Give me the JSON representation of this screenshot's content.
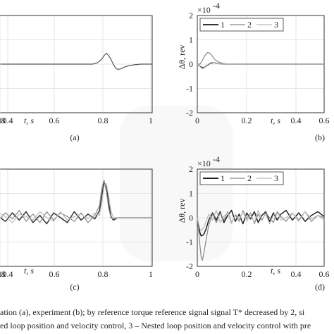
{
  "chart_data": [
    {
      "panel": "(a)",
      "type": "line",
      "x_tick_labels": [
        "0.4",
        "0.6",
        "0.8",
        "1"
      ],
      "xlabel": "t, s",
      "xlim": [
        0.33,
        1.0
      ],
      "ylim": [
        -2,
        2
      ],
      "series": [
        {
          "color": "#555555",
          "x": [
            0.33,
            0.45,
            0.6,
            0.74,
            0.76,
            0.78,
            0.79,
            0.8,
            0.81,
            0.82,
            0.83,
            0.84,
            0.85,
            0.86,
            0.88,
            0.9,
            0.92,
            0.95,
            1.0
          ],
          "y": [
            0,
            0,
            0,
            0,
            0.05,
            0.2,
            0.35,
            0.45,
            0.35,
            0.2,
            0.0,
            -0.15,
            -0.22,
            -0.2,
            -0.12,
            -0.06,
            -0.03,
            0,
            0
          ]
        }
      ]
    },
    {
      "panel": "(b)",
      "type": "line",
      "y_multiplier": "×10",
      "y_multiplier_exp": "-4",
      "ylabel": "Δθ, rev",
      "xlabel": "t, s",
      "y_tick_labels": [
        "2",
        "1",
        "0",
        "-1",
        "-2"
      ],
      "x_tick_labels": [
        "0",
        "0.2",
        "0.4",
        "0.6",
        "0.8",
        "1"
      ],
      "xlim": [
        0,
        1.0
      ],
      "ylim": [
        -2,
        2
      ],
      "legend": {
        "position": "top-left",
        "entries": [
          "1",
          "2",
          "3"
        ]
      },
      "series": [
        {
          "color": "#333333",
          "x": [
            0,
            0.01,
            0.03,
            0.05,
            0.08,
            0.11,
            0.14,
            0.17,
            0.2,
            0.25,
            0.3,
            0.5,
            0.7,
            1.0
          ],
          "y": [
            0,
            -0.05,
            -0.12,
            -0.15,
            -0.05,
            0.05,
            0.05,
            0.02,
            0,
            0,
            0,
            0,
            0,
            0
          ]
        },
        {
          "color": "#888888",
          "x": [
            0,
            0.02,
            0.04,
            0.06,
            0.08,
            0.1,
            0.12,
            0.14,
            0.17,
            0.2,
            0.25,
            0.3,
            0.5,
            0.7,
            1.0
          ],
          "y": [
            0,
            0.0,
            0.15,
            0.35,
            0.48,
            0.45,
            0.32,
            0.18,
            0.08,
            0.03,
            0,
            0,
            0,
            0,
            0
          ]
        },
        {
          "color": "#bbbbbb",
          "x": [
            0,
            0.02,
            0.04,
            0.07,
            0.1,
            0.13,
            0.16,
            0.2,
            0.3,
            0.5,
            0.7,
            1.0
          ],
          "y": [
            0,
            -0.1,
            -0.2,
            -0.1,
            0.0,
            0.05,
            0.02,
            0,
            0,
            0,
            0,
            0
          ]
        }
      ]
    },
    {
      "panel": "(c)",
      "type": "line",
      "x_tick_labels": [
        "0.4",
        "0.6",
        "0.8",
        "1"
      ],
      "xlabel": "t, s",
      "xlim": [
        0.33,
        1.0
      ],
      "ylim": [
        -2,
        2
      ],
      "series": [
        {
          "color": "#333333",
          "x": [
            0.33,
            0.36,
            0.39,
            0.42,
            0.45,
            0.48,
            0.51,
            0.54,
            0.57,
            0.6,
            0.63,
            0.66,
            0.69,
            0.72,
            0.75,
            0.77,
            0.78,
            0.79,
            0.8,
            0.81,
            0.82,
            0.83,
            0.85,
            0.88,
            0.92,
            0.96,
            1.0
          ],
          "y": [
            0.05,
            -0.15,
            0.2,
            -0.1,
            0.25,
            -0.2,
            0.1,
            -0.25,
            0.2,
            0.0,
            -0.2,
            0.25,
            -0.1,
            0.15,
            -0.05,
            0.3,
            0.9,
            1.45,
            1.3,
            0.6,
            0.05,
            -0.1,
            0,
            0,
            0,
            0,
            0
          ]
        },
        {
          "color": "#888888",
          "x": [
            0.33,
            0.36,
            0.39,
            0.42,
            0.45,
            0.48,
            0.51,
            0.54,
            0.57,
            0.6,
            0.63,
            0.66,
            0.69,
            0.72,
            0.75,
            0.77,
            0.78,
            0.79,
            0.8,
            0.81,
            0.82,
            0.83,
            0.85,
            0.88,
            0.92,
            0.96,
            1.0
          ],
          "y": [
            -0.1,
            0.2,
            -0.05,
            0.3,
            -0.15,
            0.15,
            -0.2,
            0.25,
            -0.1,
            0.2,
            0.05,
            -0.15,
            0.2,
            -0.2,
            0.1,
            0.5,
            1.2,
            1.55,
            1.1,
            0.4,
            0.0,
            -0.05,
            0,
            0,
            0,
            0,
            0
          ]
        },
        {
          "color": "#bbbbbb",
          "x": [
            0.33,
            0.36,
            0.39,
            0.42,
            0.45,
            0.48,
            0.51,
            0.54,
            0.57,
            0.6,
            0.63,
            0.66,
            0.69,
            0.72,
            0.75,
            0.77,
            0.78,
            0.79,
            0.8,
            0.81,
            0.82,
            0.83,
            0.85,
            0.88,
            0.92,
            0.96,
            1.0
          ],
          "y": [
            0.2,
            0.05,
            -0.2,
            0.15,
            0.05,
            -0.1,
            0.25,
            0.0,
            -0.15,
            0.25,
            -0.1,
            0.05,
            0.15,
            -0.05,
            0.2,
            0.1,
            0.6,
            1.3,
            1.4,
            0.9,
            0.3,
            0.0,
            0,
            0,
            0,
            0,
            0
          ]
        }
      ]
    },
    {
      "panel": "(d)",
      "type": "line",
      "y_multiplier": "×10",
      "y_multiplier_exp": "-4",
      "ylabel": "Δθ, rev",
      "xlabel": "t, s",
      "y_tick_labels": [
        "2",
        "1",
        "0",
        "-1",
        "-2"
      ],
      "x_tick_labels": [
        "0",
        "0.2",
        "0.4",
        "0.6",
        "0.8",
        "1"
      ],
      "xlim": [
        0,
        1.0
      ],
      "ylim": [
        -2,
        2
      ],
      "legend": {
        "position": "top-left",
        "entries": [
          "1",
          "2",
          "3"
        ]
      },
      "series": [
        {
          "color": "#222222",
          "x": [
            0,
            0.01,
            0.02,
            0.03,
            0.05,
            0.07,
            0.09,
            0.12,
            0.15,
            0.18,
            0.21,
            0.24,
            0.27,
            0.3,
            0.33,
            0.36,
            0.39,
            0.42,
            0.45,
            0.48,
            0.51,
            0.54,
            0.57,
            0.6,
            0.63,
            0.66,
            0.7,
            0.75,
            0.8,
            0.85,
            0.9,
            0.95,
            1.0
          ],
          "y": [
            0,
            -0.3,
            -0.6,
            -0.75,
            -0.7,
            -0.45,
            -0.1,
            0.2,
            -0.1,
            0.25,
            -0.2,
            0.1,
            0.3,
            -0.15,
            0.15,
            -0.25,
            0.2,
            -0.05,
            0.25,
            -0.2,
            0.1,
            0.25,
            -0.15,
            0.2,
            -0.1,
            0.15,
            0.3,
            -0.1,
            0.2,
            -0.15,
            0.1,
            0.25,
            0.05
          ]
        },
        {
          "color": "#888888",
          "x": [
            0,
            0.01,
            0.02,
            0.03,
            0.04,
            0.05,
            0.07,
            0.09,
            0.12,
            0.15,
            0.18,
            0.21,
            0.24,
            0.27,
            0.3,
            0.33,
            0.36,
            0.39,
            0.42,
            0.45,
            0.48,
            0.51,
            0.54,
            0.57,
            0.6,
            0.63,
            0.66,
            0.7,
            0.75,
            0.8,
            0.85,
            0.9,
            0.95,
            1.0
          ],
          "y": [
            0,
            -0.5,
            -1.1,
            -1.6,
            -1.75,
            -1.5,
            -0.9,
            -0.3,
            0.15,
            -0.2,
            0.2,
            -0.1,
            0.25,
            -0.2,
            0.1,
            -0.15,
            0.3,
            -0.05,
            0.2,
            -0.25,
            0.15,
            -0.1,
            0.2,
            0.0,
            -0.2,
            0.25,
            0.05,
            -0.15,
            0.2,
            -0.1,
            0.25,
            -0.15,
            0.1,
            0.0
          ]
        },
        {
          "color": "#bbbbbb",
          "x": [
            0,
            0.01,
            0.02,
            0.03,
            0.05,
            0.07,
            0.09,
            0.12,
            0.15,
            0.18,
            0.21,
            0.24,
            0.27,
            0.3,
            0.33,
            0.36,
            0.39,
            0.42,
            0.45,
            0.48,
            0.51,
            0.54,
            0.57,
            0.6,
            0.63,
            0.66,
            0.7,
            0.75,
            0.8,
            0.85,
            0.9,
            0.95,
            1.0
          ],
          "y": [
            0,
            -0.2,
            -0.45,
            -0.55,
            -0.4,
            -0.15,
            0.15,
            -0.1,
            0.3,
            -0.2,
            0.05,
            0.2,
            -0.25,
            0.15,
            -0.05,
            0.25,
            -0.15,
            0.1,
            -0.2,
            0.3,
            -0.05,
            0.15,
            -0.25,
            0.1,
            0.2,
            -0.1,
            0.0,
            0.2,
            -0.15,
            0.25,
            -0.05,
            0.1,
            -0.1
          ]
        }
      ]
    }
  ],
  "caption": {
    "line1": "ation (a), experiment (b); by reference torque reference signal signal T* decreased by 2, si",
    "line2": "ed loop position and velocity control, 3 – Nested loop position and velocity control with pre"
  }
}
